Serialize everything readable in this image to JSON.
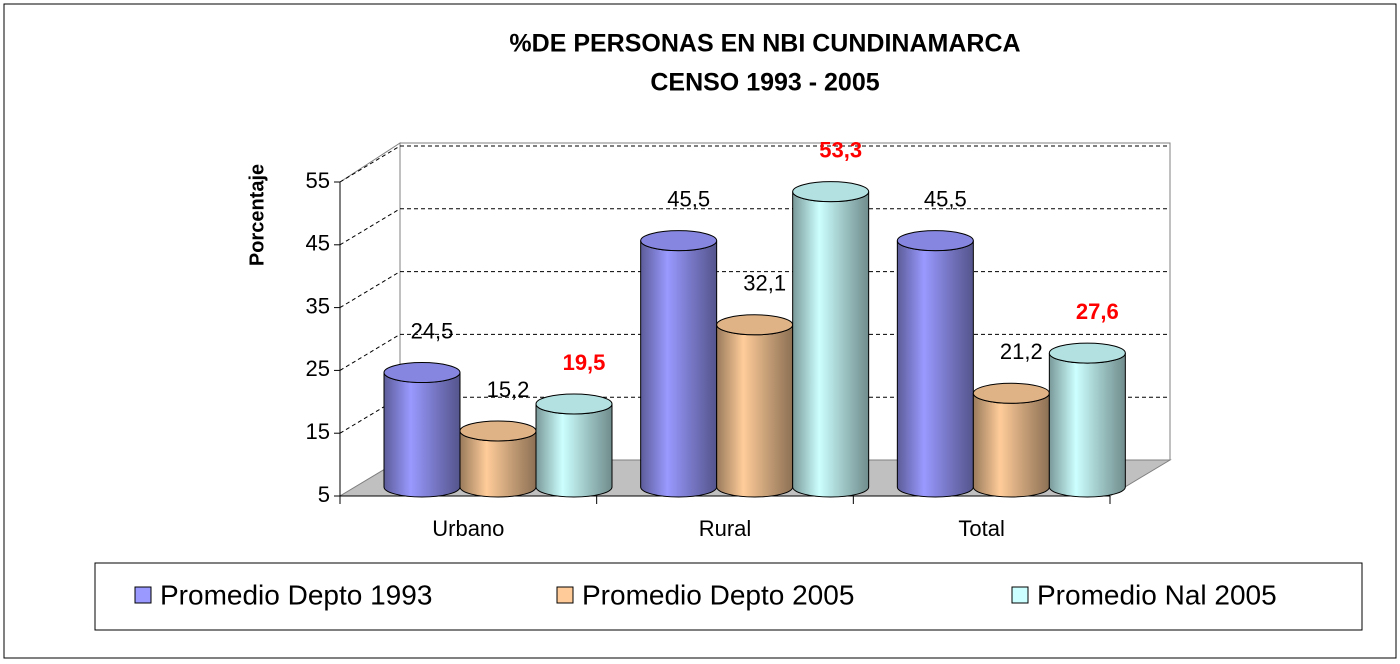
{
  "chart_data": {
    "type": "bar3d",
    "title": [
      "%DE PERSONAS EN NBI CUNDINAMARCA",
      "CENSO 1993 - 2005"
    ],
    "y_label": "Porcentaje",
    "categories": [
      "Urbano",
      "Rural",
      "Total"
    ],
    "series": [
      {
        "name": "Promedio Depto 1993",
        "color": "#9999ff",
        "label_color": "#000000",
        "label_weight": "normal",
        "values": [
          24.5,
          45.5,
          45.5
        ],
        "value_labels": [
          "24,5",
          "45,5",
          "45,5"
        ]
      },
      {
        "name": "Promedio Depto 2005",
        "color": "#ffcc99",
        "label_color": "#000000",
        "label_weight": "normal",
        "values": [
          15.2,
          32.1,
          21.2
        ],
        "value_labels": [
          "15,2",
          "32,1",
          "21,2"
        ]
      },
      {
        "name": "Promedio Nal 2005",
        "color": "#ccffff",
        "label_color": "#ff0000",
        "label_weight": "bold",
        "values": [
          19.5,
          53.3,
          27.6
        ],
        "value_labels": [
          "19,5",
          "53,3",
          "27,6"
        ]
      }
    ],
    "ylim": [
      5,
      55
    ],
    "yticks": [
      5,
      15,
      25,
      35,
      45,
      55
    ],
    "grid": true,
    "legend": "bottom"
  }
}
